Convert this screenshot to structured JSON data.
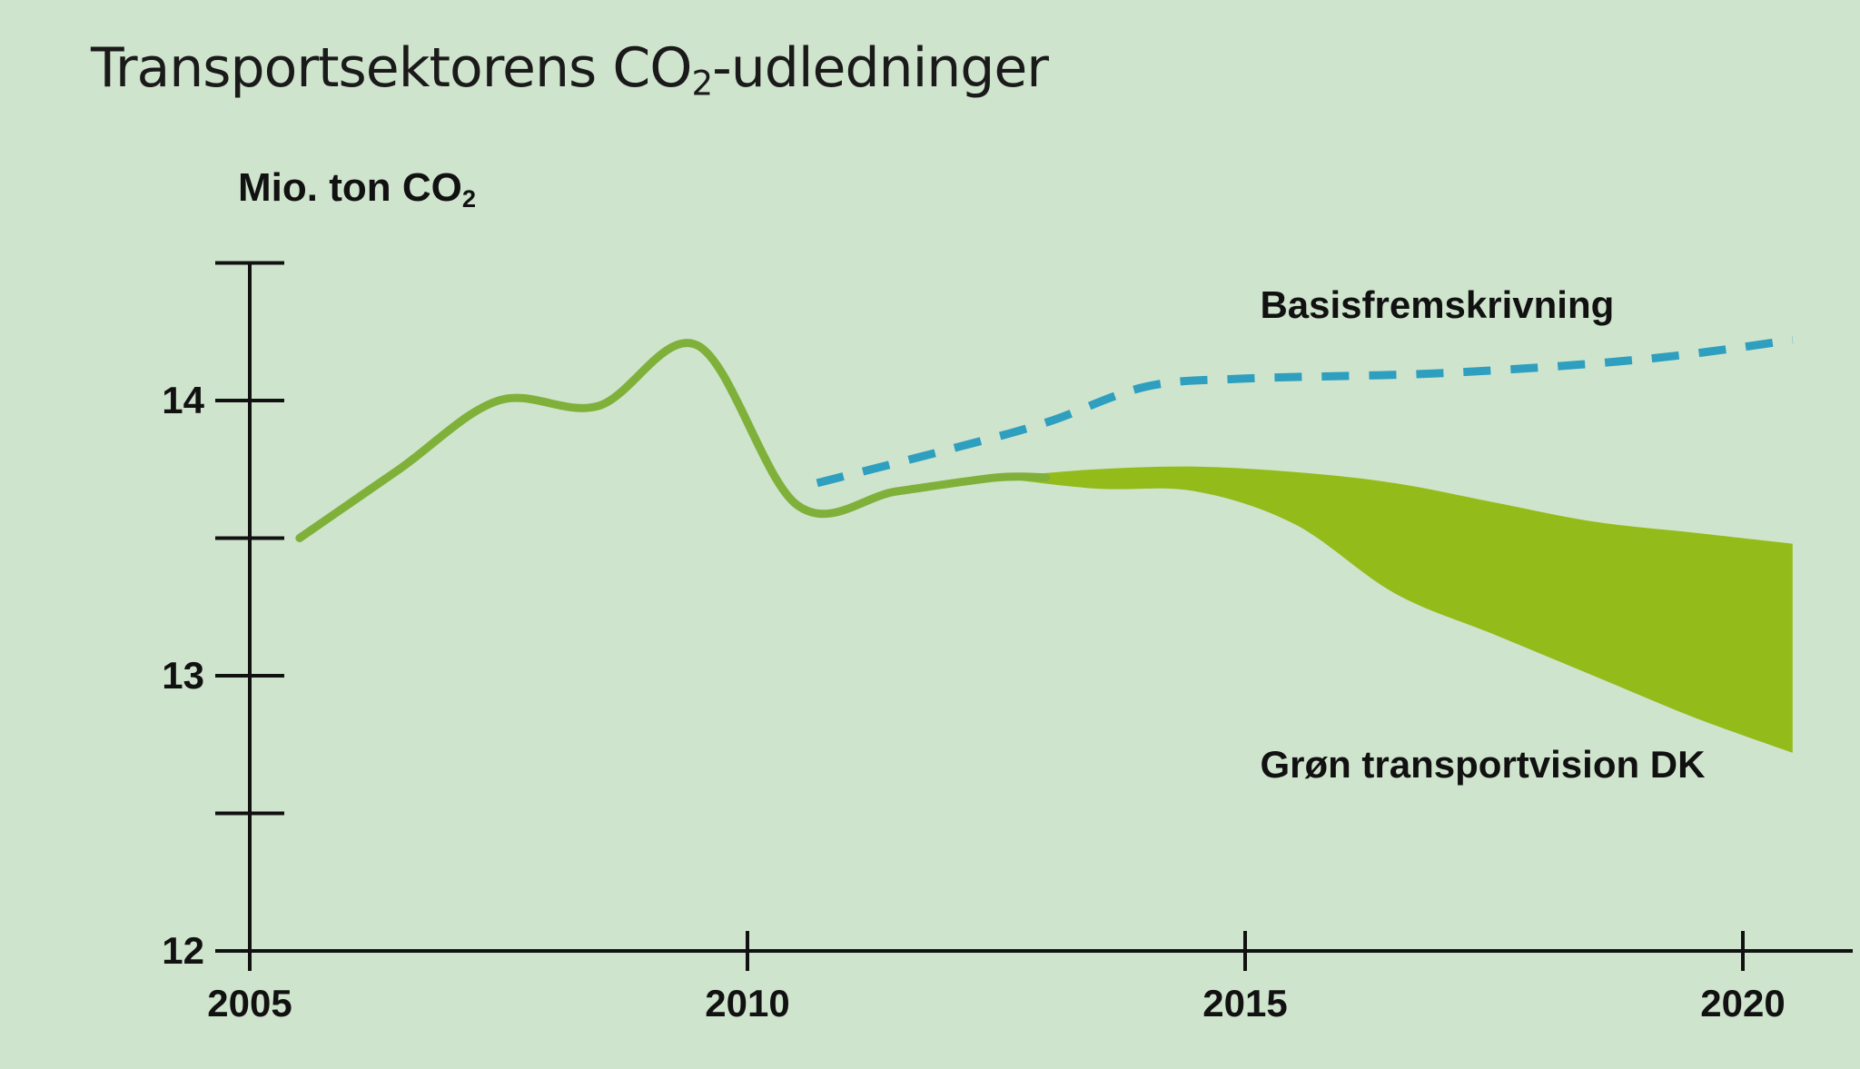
{
  "chart_data": {
    "type": "line",
    "title": {
      "main": "Transportsektorens CO",
      "sub": "2",
      "rest": "-udledninger"
    },
    "ylabel": {
      "main": "Mio. ton CO",
      "sub": "2"
    },
    "xlabel": "",
    "xlim": [
      2005,
      2020.7
    ],
    "ylim": [
      12,
      14.5
    ],
    "xticks": [
      2005,
      2010,
      2015,
      2020
    ],
    "xtick_labels": [
      "2005",
      "2010",
      "2015",
      "2020"
    ],
    "yticks": [
      12,
      12.5,
      13,
      13.5,
      14,
      14.5
    ],
    "ytick_labels": [
      "12",
      "",
      "13",
      "",
      "14",
      ""
    ],
    "grid": false,
    "series": [
      {
        "style": "solid",
        "color": "#7fb13a",
        "points": [
          [
            2005.5,
            13.5
          ],
          [
            2006.5,
            13.75
          ],
          [
            2007.5,
            14.0
          ],
          [
            2008.5,
            13.98
          ],
          [
            2009.5,
            14.2
          ],
          [
            2010.5,
            13.62
          ],
          [
            2011.5,
            13.67
          ],
          [
            2012.5,
            13.72
          ],
          [
            2013.0,
            13.72
          ]
        ]
      },
      {
        "name": "Basisfremskrivning",
        "style": "dashed",
        "color": "#2e9fbf",
        "points": [
          [
            2010.7,
            13.7
          ],
          [
            2012.0,
            13.82
          ],
          [
            2013.0,
            13.92
          ],
          [
            2014.0,
            14.05
          ],
          [
            2015.0,
            14.08
          ],
          [
            2017.0,
            14.1
          ],
          [
            2019.0,
            14.15
          ],
          [
            2020.5,
            14.22
          ]
        ]
      }
    ],
    "band": {
      "name": "Grøn transportvision DK",
      "color": "#93bc1a",
      "upper": [
        [
          2012.5,
          13.72
        ],
        [
          2013.5,
          13.75
        ],
        [
          2014.5,
          13.76
        ],
        [
          2015.5,
          13.74
        ],
        [
          2016.5,
          13.7
        ],
        [
          2017.5,
          13.63
        ],
        [
          2018.5,
          13.56
        ],
        [
          2019.5,
          13.52
        ],
        [
          2020.5,
          13.48
        ]
      ],
      "lower": [
        [
          2012.5,
          13.72
        ],
        [
          2013.5,
          13.68
        ],
        [
          2014.5,
          13.67
        ],
        [
          2015.5,
          13.55
        ],
        [
          2016.5,
          13.3
        ],
        [
          2017.5,
          13.15
        ],
        [
          2018.5,
          13.0
        ],
        [
          2019.5,
          12.85
        ],
        [
          2020.5,
          12.72
        ]
      ]
    },
    "annotations": [
      {
        "key": "basis",
        "text": "Basisfremskrivning",
        "x": 2015.15,
        "y": 14.3
      },
      {
        "key": "groen",
        "text": "Grøn transportvision DK",
        "x": 2015.15,
        "y": 12.63
      }
    ]
  }
}
